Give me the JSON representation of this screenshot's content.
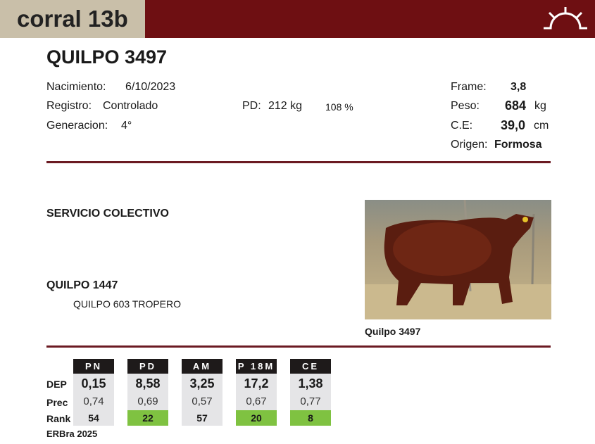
{
  "header": {
    "corral": "corral 13b",
    "logo_icon": "rising-sun-icon",
    "bar_color": "#6e0f12"
  },
  "animal": {
    "name": "QUILPO 3497",
    "nacimiento_label": "Nacimiento:",
    "nacimiento": "6/10/2023",
    "registro_label": "Registro:",
    "registro": "Controlado",
    "generacion_label": "Generacion:",
    "generacion": "4°",
    "pd_label": "PD:",
    "pd_value": "212 kg",
    "pd_pct": "108 %",
    "frame_label": "Frame:",
    "frame": "3,8",
    "peso_label": "Peso:",
    "peso": "684",
    "peso_unit": "kg",
    "ce_label": "C.E:",
    "ce": "39,0",
    "ce_unit": "cm",
    "origen_label": "Origen:",
    "origen": "Formosa"
  },
  "service": "SERVICIO COLECTIVO",
  "sire": "QUILPO 1447",
  "grandsire": "QUILPO 603 TROPERO",
  "photo_caption": "Quilpo 3497",
  "table": {
    "row_labels": [
      "DEP",
      "Prec",
      "Rank"
    ],
    "columns": [
      {
        "head": "PN",
        "dep": "0,15",
        "prec": "0,74",
        "rank": "54",
        "top": false
      },
      {
        "head": "PD",
        "dep": "8,58",
        "prec": "0,69",
        "rank": "22",
        "top": true
      },
      {
        "head": "AM",
        "dep": "3,25",
        "prec": "0,57",
        "rank": "57",
        "top": false
      },
      {
        "head": "P 18M",
        "dep": "17,2",
        "prec": "0,67",
        "rank": "20",
        "top": true
      },
      {
        "head": "CE",
        "dep": "1,38",
        "prec": "0,77",
        "rank": "8",
        "top": true
      }
    ],
    "footer": "ERBra 2025",
    "highlight_color": "#7fc241"
  }
}
